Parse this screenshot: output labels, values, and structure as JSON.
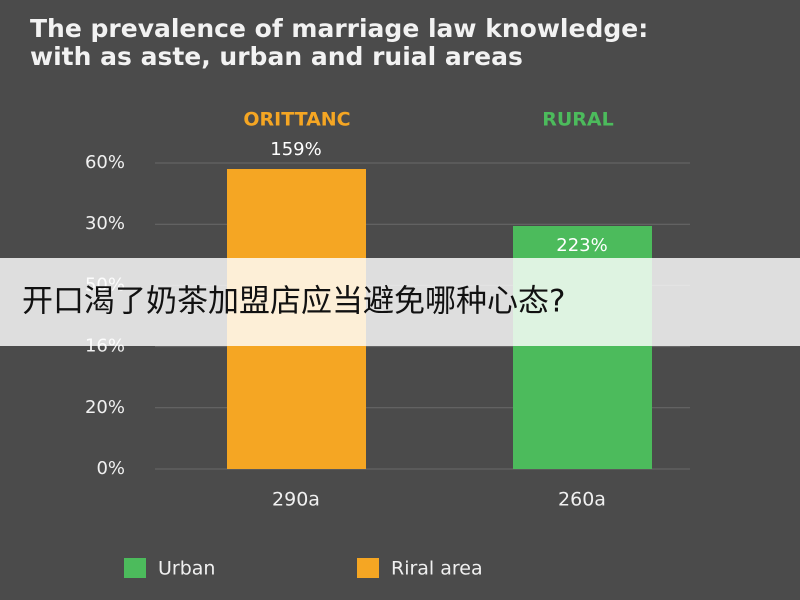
{
  "header": {
    "title_lines": [
      "The prevalence of marriage law knowledge:",
      "with as aste, urban and ruial areas"
    ]
  },
  "axis": {
    "tick_labels": [
      "60%",
      "30%",
      "50%",
      "16%",
      "20%",
      "0%"
    ]
  },
  "groups": [
    {
      "header": "ORITTANC",
      "value_label": "159%",
      "x_label": "290a",
      "color": "#f5a623"
    },
    {
      "header": "RURAL",
      "value_label": "223%",
      "x_label": "260a",
      "color": "#4cbb5c"
    }
  ],
  "legend": [
    {
      "label": "Urban",
      "color": "#4cbb5c"
    },
    {
      "label": "Riral area",
      "color": "#f5a623"
    }
  ],
  "banner": {
    "text": "开口渴了奶茶加盟店应当避免哪种心态?"
  }
}
